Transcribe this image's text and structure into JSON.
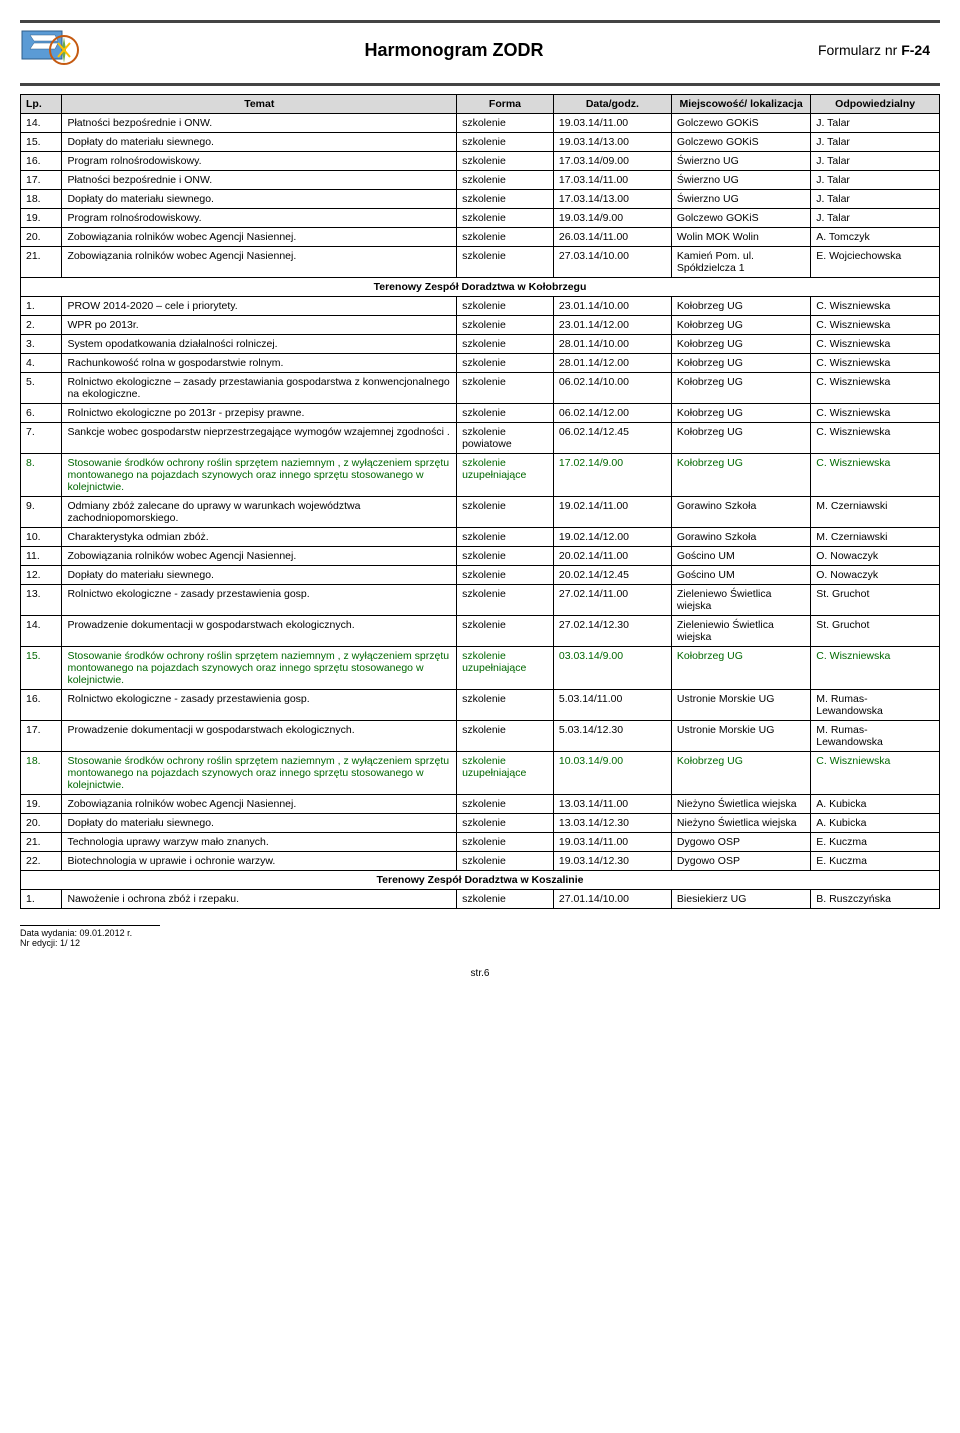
{
  "header": {
    "title": "Harmonogram ZODR",
    "form_prefix": "Formularz nr ",
    "form_num": "F-24"
  },
  "table_headers": {
    "lp": "Lp.",
    "temat": "Temat",
    "forma": "Forma",
    "data": "Data/godz.",
    "miejsce": "Miejscowość/ lokalizacja",
    "odp": "Odpowiedzialny"
  },
  "rows": [
    {
      "lp": "14.",
      "temat": "Płatności bezpośrednie i ONW.",
      "forma": "szkolenie",
      "data": "19.03.14/11.00",
      "miejsce": "Golczewo GOKiS",
      "odp": "J. Talar"
    },
    {
      "lp": "15.",
      "temat": "Dopłaty do materiału siewnego.",
      "forma": "szkolenie",
      "data": "19.03.14/13.00",
      "miejsce": "Golczewo GOKiS",
      "odp": "J. Talar"
    },
    {
      "lp": "16.",
      "temat": "Program  rolnośrodowiskowy.",
      "forma": "szkolenie",
      "data": "17.03.14/09.00",
      "miejsce": "Świerzno UG",
      "odp": "J. Talar"
    },
    {
      "lp": "17.",
      "temat": "Płatności bezpośrednie i ONW.",
      "forma": "szkolenie",
      "data": "17.03.14/11.00",
      "miejsce": "Świerzno UG",
      "odp": "J. Talar"
    },
    {
      "lp": "18.",
      "temat": "Dopłaty do materiału siewnego.",
      "forma": "szkolenie",
      "data": "17.03.14/13.00",
      "miejsce": "Świerzno UG",
      "odp": "J. Talar"
    },
    {
      "lp": "19.",
      "temat": "Program  rolnośrodowiskowy.",
      "forma": "szkolenie",
      "data": "19.03.14/9.00",
      "miejsce": "Golczewo GOKiS",
      "odp": "J. Talar"
    },
    {
      "lp": "20.",
      "temat": "Zobowiązania rolników wobec  Agencji Nasiennej.",
      "forma": "szkolenie",
      "data": "26.03.14/11.00",
      "miejsce": "Wolin MOK Wolin",
      "odp": "A. Tomczyk"
    },
    {
      "lp": "21.",
      "temat": "Zobowiązania rolników wobec  Agencji Nasiennej.",
      "forma": "szkolenie",
      "data": "27.03.14/10.00",
      "miejsce": "Kamień Pom. ul. Spółdzielcza 1",
      "odp": "E. Wojciechowska"
    }
  ],
  "section1": "Terenowy Zespół Doradztwa w Kołobrzegu",
  "rows2": [
    {
      "lp": "1.",
      "temat": "PROW 2014-2020 – cele i priorytety.",
      "forma": "szkolenie",
      "data": "23.01.14/10.00",
      "miejsce": "Kołobrzeg UG",
      "odp": "C. Wiszniewska"
    },
    {
      "lp": "2.",
      "temat": "WPR po 2013r.",
      "forma": "szkolenie",
      "data": "23.01.14/12.00",
      "miejsce": "Kołobrzeg UG",
      "odp": "C. Wiszniewska"
    },
    {
      "lp": "3.",
      "temat": "System opodatkowania działalności rolniczej.",
      "forma": "szkolenie",
      "data": "28.01.14/10.00",
      "miejsce": "Kołobrzeg UG",
      "odp": "C. Wiszniewska"
    },
    {
      "lp": "4.",
      "temat": "Rachunkowość rolna w gospodarstwie rolnym.",
      "forma": "szkolenie",
      "data": "28.01.14/12.00",
      "miejsce": "Kołobrzeg UG",
      "odp": "C. Wiszniewska"
    },
    {
      "lp": "5.",
      "temat": "Rolnictwo ekologiczne – zasady przestawiania gospodarstwa z konwencjonalnego na ekologiczne.",
      "forma": "szkolenie",
      "data": "06.02.14/10.00",
      "miejsce": "Kołobrzeg UG",
      "odp": "C. Wiszniewska"
    },
    {
      "lp": "6.",
      "temat": "Rolnictwo ekologiczne po 2013r - przepisy prawne.",
      "forma": "szkolenie",
      "data": "06.02.14/12.00",
      "miejsce": "Kołobrzeg UG",
      "odp": "C. Wiszniewska"
    },
    {
      "lp": "7.",
      "temat": "Sankcje wobec gospodarstw nieprzestrzegające wymogów wzajemnej zgodności .",
      "forma": "szkolenie powiatowe",
      "data": "06.02.14/12.45",
      "miejsce": "Kołobrzeg UG",
      "odp": "C. Wiszniewska"
    },
    {
      "lp": "8.",
      "temat": "Stosowanie środków ochrony roślin sprzętem naziemnym , z wyłączeniem sprzętu montowanego na pojazdach szynowych oraz innego sprzętu stosowanego w kolejnictwie.",
      "forma": "szkolenie uzupełniające",
      "data": "17.02.14/9.00",
      "miejsce": "Kołobrzeg UG",
      "odp": "C. Wiszniewska",
      "green": true
    },
    {
      "lp": "9.",
      "temat": "Odmiany zbóż zalecane do uprawy w warunkach województwa  zachodniopomorskiego.",
      "forma": "szkolenie",
      "data": "19.02.14/11.00",
      "miejsce": "Gorawino Szkoła",
      "odp": "M. Czerniawski"
    },
    {
      "lp": "10.",
      "temat": "Charakterystyka odmian zbóż.",
      "forma": "szkolenie",
      "data": "19.02.14/12.00",
      "miejsce": "Gorawino Szkoła",
      "odp": "M. Czerniawski"
    },
    {
      "lp": "11.",
      "temat": "Zobowiązania rolników wobec Agencji Nasiennej.",
      "forma": "szkolenie",
      "data": "20.02.14/11.00",
      "miejsce": "Gościno UM",
      "odp": "O. Nowaczyk"
    },
    {
      "lp": "12.",
      "temat": "Dopłaty do materiału siewnego.",
      "forma": "szkolenie",
      "data": "20.02.14/12.45",
      "miejsce": "Gościno UM",
      "odp": "O. Nowaczyk"
    },
    {
      "lp": "13.",
      "temat": "Rolnictwo ekologiczne - zasady przestawienia gosp.",
      "forma": "szkolenie",
      "data": "27.02.14/11.00",
      "miejsce": "Zieleniewo Świetlica wiejska",
      "odp": "St. Gruchot"
    },
    {
      "lp": "14.",
      "temat": "Prowadzenie dokumentacji w gospodarstwach ekologicznych.",
      "forma": "szkolenie",
      "data": "27.02.14/12.30",
      "miejsce": "Zieleniewio Świetlica wiejska",
      "odp": "St. Gruchot"
    },
    {
      "lp": "15.",
      "temat": "Stosowanie środków ochrony roślin sprzętem naziemnym , z wyłączeniem sprzętu montowanego na pojazdach szynowych oraz innego sprzętu stosowanego w kolejnictwie.",
      "forma": "szkolenie uzupełniające",
      "data": "03.03.14/9.00",
      "miejsce": "Kołobrzeg UG",
      "odp": "C. Wiszniewska",
      "green": true
    },
    {
      "lp": "16.",
      "temat": "Rolnictwo ekologiczne - zasady przestawienia gosp.",
      "forma": "szkolenie",
      "data": "5.03.14/11.00",
      "miejsce": "Ustronie Morskie UG",
      "odp": "M. Rumas-Lewandowska"
    },
    {
      "lp": "17.",
      "temat": "Prowadzenie dokumentacji w gospodarstwach ekologicznych.",
      "forma": "szkolenie",
      "data": "5.03.14/12.30",
      "miejsce": "Ustronie Morskie UG",
      "odp": "M. Rumas-Lewandowska"
    },
    {
      "lp": "18.",
      "temat": "Stosowanie środków ochrony roślin sprzętem naziemnym , z wyłączeniem sprzętu montowanego na pojazdach szynowych oraz innego sprzętu stosowanego w kolejnictwie.",
      "forma": "szkolenie uzupełniające",
      "data": "10.03.14/9.00",
      "miejsce": "Kołobrzeg UG",
      "odp": "C. Wiszniewska",
      "green": true
    },
    {
      "lp": "19.",
      "temat": "Zobowiązania rolników wobec Agencji Nasiennej.",
      "forma": "szkolenie",
      "data": "13.03.14/11.00",
      "miejsce": "Nieżyno Świetlica wiejska",
      "odp": "A. Kubicka"
    },
    {
      "lp": "20.",
      "temat": "Dopłaty do materiału siewnego.",
      "forma": "szkolenie",
      "data": "13.03.14/12.30",
      "miejsce": "Nieżyno Świetlica wiejska",
      "odp": "A. Kubicka"
    },
    {
      "lp": "21.",
      "temat": "Technologia uprawy warzyw mało znanych.",
      "forma": "szkolenie",
      "data": "19.03.14/11.00",
      "miejsce": "Dygowo OSP",
      "odp": "E. Kuczma"
    },
    {
      "lp": "22.",
      "temat": "Biotechnologia w uprawie i ochronie warzyw.",
      "forma": "szkolenie",
      "data": "19.03.14/12.30",
      "miejsce": "Dygowo OSP",
      "odp": "E. Kuczma"
    }
  ],
  "section2": "Terenowy Zespół Doradztwa w Koszalinie",
  "rows3": [
    {
      "lp": "1.",
      "temat": "Nawożenie i ochrona zbóż i rzepaku.",
      "forma": "szkolenie",
      "data": "27.01.14/10.00",
      "miejsce": "Biesiekierz UG",
      "odp": "B. Ruszczyńska"
    }
  ],
  "footer": {
    "date": "Data wydania: 09.01.2012 r.",
    "edition": "Nr edycji: 1/ 12",
    "page": "str.6"
  }
}
